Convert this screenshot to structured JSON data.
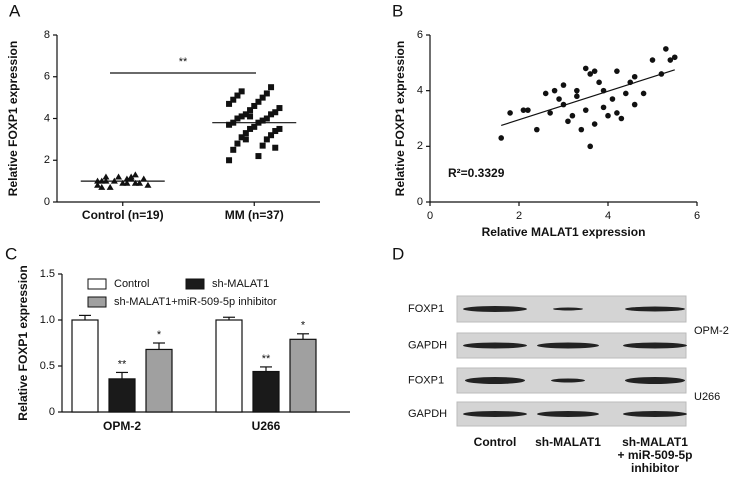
{
  "chart_data": [
    {
      "panel": "A",
      "type": "dot",
      "ylabel": "Relative FOXP1 expression",
      "categories": [
        "Control (n=19)",
        "MM (n=37)"
      ],
      "values": [
        [
          0.8,
          0.9,
          1.0,
          1.1,
          1.2,
          1.3,
          0.7,
          0.9,
          1.0,
          1.1,
          1.2,
          0.8,
          0.9,
          1.0,
          1.1,
          0.7,
          1.2,
          1.0,
          0.9
        ],
        [
          2.0,
          2.2,
          2.5,
          2.7,
          2.8,
          3.0,
          3.1,
          3.2,
          3.3,
          3.4,
          3.5,
          3.5,
          3.6,
          3.7,
          3.8,
          3.8,
          3.9,
          4.0,
          4.0,
          4.1,
          4.2,
          4.2,
          4.3,
          4.4,
          4.5,
          4.6,
          4.7,
          4.8,
          4.9,
          5.0,
          5.1,
          5.2,
          5.3,
          5.5,
          3.0,
          2.6,
          4.1
        ]
      ],
      "means": [
        1.0,
        3.8
      ],
      "annotation": "**",
      "color": "#111111",
      "ylim": [
        0,
        8
      ],
      "yticks": [
        0,
        2,
        4,
        6,
        8
      ]
    },
    {
      "panel": "B",
      "type": "scatter",
      "xlabel": "Relative MALAT1 expression",
      "ylabel": "Relative FOXP1 expression",
      "x": [
        1.6,
        1.8,
        2.1,
        2.4,
        2.6,
        2.7,
        2.8,
        2.9,
        3.0,
        3.0,
        3.1,
        3.2,
        3.3,
        3.3,
        3.4,
        3.5,
        3.5,
        3.6,
        3.6,
        3.7,
        3.7,
        3.8,
        3.9,
        4.0,
        4.1,
        4.2,
        4.2,
        4.3,
        4.4,
        4.5,
        4.6,
        4.6,
        4.8,
        5.0,
        5.2,
        5.3,
        5.4,
        5.5,
        2.2,
        3.9
      ],
      "y": [
        2.3,
        3.2,
        3.3,
        2.6,
        3.9,
        3.2,
        4.0,
        3.7,
        3.5,
        4.2,
        2.9,
        3.1,
        3.8,
        4.0,
        2.6,
        4.8,
        3.3,
        2.0,
        4.6,
        2.8,
        4.7,
        4.3,
        3.4,
        3.1,
        3.7,
        3.2,
        4.7,
        3.0,
        3.9,
        4.3,
        3.5,
        4.5,
        3.9,
        5.1,
        4.6,
        5.5,
        5.1,
        5.2,
        3.3,
        4.0
      ],
      "fit_x": [
        1.6,
        5.5
      ],
      "fit_y": [
        2.75,
        4.75
      ],
      "annotation": "R²=0.3329",
      "color": "#111111",
      "xlim": [
        0,
        6
      ],
      "xticks": [
        0,
        2,
        4,
        6
      ],
      "ylim": [
        0,
        6
      ],
      "yticks": [
        0,
        2,
        4,
        6
      ]
    },
    {
      "panel": "C",
      "type": "bar",
      "ylabel": "Relative FOXP1 expression",
      "categories": [
        "OPM-2",
        "U266"
      ],
      "series": [
        {
          "name": "Control",
          "color": "#ffffff",
          "values": [
            1.0,
            1.0
          ],
          "errors": [
            0.05,
            0.03
          ],
          "value_labels": [
            null,
            null
          ]
        },
        {
          "name": "sh-MALAT1",
          "color": "#1a1a1a",
          "values": [
            0.36,
            0.44
          ],
          "errors": [
            0.07,
            0.05
          ],
          "value_labels": [
            "**",
            "**"
          ]
        },
        {
          "name": "sh-MALAT1+miR-509-5p inhibitor",
          "color": "#a0a0a0",
          "values": [
            0.68,
            0.79
          ],
          "errors": [
            0.07,
            0.06
          ],
          "value_labels": [
            "*",
            "*"
          ]
        }
      ],
      "ylim": [
        0,
        1.5
      ],
      "yticks": [
        0,
        0.5,
        {
          "value": 1,
          "label": "1.0"
        },
        1.5
      ]
    }
  ],
  "blot": {
    "panel": "D",
    "rows": [
      "FOXP1",
      "GAPDH",
      "FOXP1",
      "GAPDH"
    ],
    "cell_lines": [
      "OPM-2",
      "U266"
    ],
    "lanes": [
      [
        "Control"
      ],
      [
        "sh-MALAT1"
      ],
      [
        "sh-MALAT1",
        "+ miR-509-5p",
        "inhibitor"
      ]
    ]
  }
}
